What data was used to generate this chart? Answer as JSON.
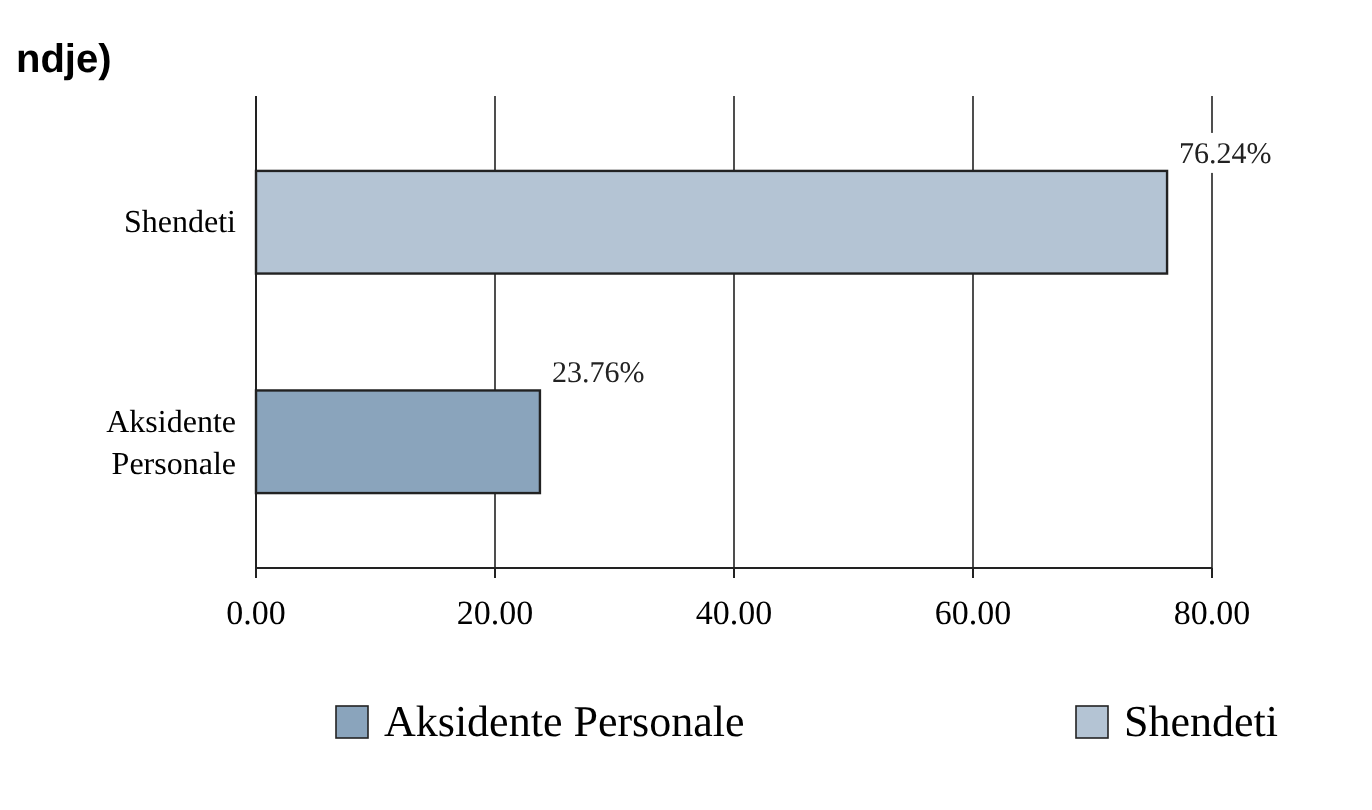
{
  "chart_data": {
    "type": "bar",
    "orientation": "horizontal",
    "title": "ndje)",
    "categories": [
      "Shendeti",
      "Aksidente Personale"
    ],
    "series": [
      {
        "name": "Aksidente Personale",
        "color": "#8aa4bc",
        "values": [
          null,
          23.76
        ],
        "value_labels": [
          null,
          "23.76%"
        ]
      },
      {
        "name": "Shendeti",
        "color": "#b4c4d4",
        "values": [
          76.24,
          null
        ],
        "value_labels": [
          "76.24%",
          null
        ]
      }
    ],
    "xlim": [
      0,
      80
    ],
    "xticks": [
      {
        "value": 0,
        "label": "0.00"
      },
      {
        "value": 20,
        "label": "20.00"
      },
      {
        "value": 40,
        "label": "40.00"
      },
      {
        "value": 60,
        "label": "60.00"
      },
      {
        "value": 80,
        "label": "80.00"
      }
    ],
    "grid": "x",
    "legend": "bottom"
  }
}
